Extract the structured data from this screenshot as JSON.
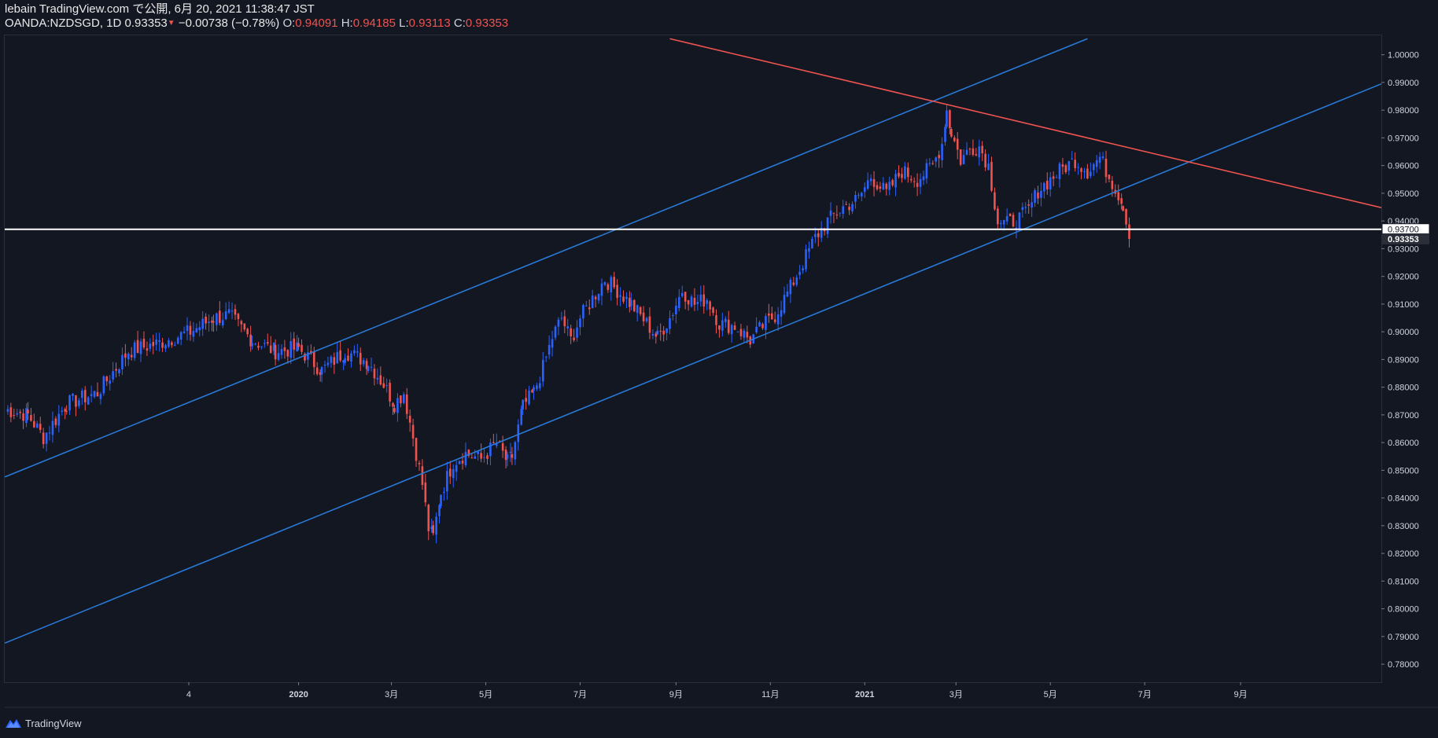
{
  "header": {
    "title": "lebain TradingView.com で公開, 6月 20, 2021 11:38:47 JST",
    "symbol": "OANDA:NZDSGD, 1D",
    "price": "0.93353",
    "change": "−0.00738 (−0.78%)",
    "o_label": "O:",
    "o_value": "0.94091",
    "h_label": "H:",
    "h_value": "0.94185",
    "l_label": "L:",
    "l_value": "0.93113",
    "c_label": "C:",
    "c_value": "0.93353"
  },
  "footer": {
    "brand": "TradingView"
  },
  "colors": {
    "background": "#131722",
    "up": "#2962ff",
    "down": "#ef5350",
    "channel": "#2979d6",
    "resistance": "#ef5350",
    "support": "#ffffff"
  },
  "chart_data": {
    "type": "candlestick",
    "symbol": "OANDA:NZDSGD",
    "interval": "1D",
    "x_range_days": [
      -190,
      700
    ],
    "ylim": [
      0.7735,
      1.007
    ],
    "y_ticks": [
      1.0,
      0.99,
      0.98,
      0.97,
      0.96,
      0.95,
      0.94,
      0.93,
      0.92,
      0.91,
      0.9,
      0.89,
      0.88,
      0.87,
      0.86,
      0.85,
      0.84,
      0.83,
      0.82,
      0.81,
      0.8,
      0.79,
      0.78
    ],
    "y_tick_labels": [
      "1.00000",
      "0.99000",
      "0.98000",
      "0.97000",
      "0.96000",
      "0.95000",
      "0.94000",
      "0.93000",
      "0.92000",
      "0.91000",
      "0.90000",
      "0.89000",
      "0.88000",
      "0.87000",
      "0.86000",
      "0.85000",
      "0.84000",
      "0.83000",
      "0.82000",
      "0.81000",
      "0.80000",
      "0.79000",
      "0.78000"
    ],
    "x_ticks": [
      {
        "day": -71,
        "label": "4"
      },
      {
        "day": 0,
        "label": "2020"
      },
      {
        "day": 60,
        "label": "3月"
      },
      {
        "day": 121,
        "label": "5月"
      },
      {
        "day": 182,
        "label": "7月"
      },
      {
        "day": 244,
        "label": "9月"
      },
      {
        "day": 305,
        "label": "11月"
      },
      {
        "day": 366,
        "label": "2021"
      },
      {
        "day": 425,
        "label": "3月"
      },
      {
        "day": 486,
        "label": "5月"
      },
      {
        "day": 547,
        "label": "7月"
      },
      {
        "day": 609,
        "label": "9月"
      }
    ],
    "series_key_points": [
      [
        -190,
        0.872
      ],
      [
        -175,
        0.87
      ],
      [
        -165,
        0.862
      ],
      [
        -150,
        0.874
      ],
      [
        -130,
        0.878
      ],
      [
        -110,
        0.893
      ],
      [
        -90,
        0.896
      ],
      [
        -70,
        0.9
      ],
      [
        -55,
        0.905
      ],
      [
        -45,
        0.906
      ],
      [
        -30,
        0.897
      ],
      [
        -15,
        0.893
      ],
      [
        0,
        0.894
      ],
      [
        15,
        0.886
      ],
      [
        30,
        0.893
      ],
      [
        45,
        0.889
      ],
      [
        55,
        0.881
      ],
      [
        62,
        0.874
      ],
      [
        68,
        0.878
      ],
      [
        74,
        0.862
      ],
      [
        80,
        0.845
      ],
      [
        84,
        0.829
      ],
      [
        87,
        0.826
      ],
      [
        92,
        0.842
      ],
      [
        100,
        0.853
      ],
      [
        108,
        0.856
      ],
      [
        118,
        0.854
      ],
      [
        128,
        0.86
      ],
      [
        135,
        0.853
      ],
      [
        138,
        0.855
      ],
      [
        145,
        0.873
      ],
      [
        152,
        0.878
      ],
      [
        158,
        0.887
      ],
      [
        164,
        0.898
      ],
      [
        170,
        0.905
      ],
      [
        176,
        0.897
      ],
      [
        182,
        0.905
      ],
      [
        190,
        0.912
      ],
      [
        198,
        0.919
      ],
      [
        206,
        0.915
      ],
      [
        215,
        0.91
      ],
      [
        225,
        0.903
      ],
      [
        232,
        0.898
      ],
      [
        240,
        0.905
      ],
      [
        248,
        0.915
      ],
      [
        256,
        0.91
      ],
      [
        264,
        0.912
      ],
      [
        272,
        0.903
      ],
      [
        282,
        0.902
      ],
      [
        292,
        0.897
      ],
      [
        300,
        0.902
      ],
      [
        308,
        0.906
      ],
      [
        318,
        0.916
      ],
      [
        326,
        0.925
      ],
      [
        334,
        0.934
      ],
      [
        342,
        0.94
      ],
      [
        352,
        0.945
      ],
      [
        362,
        0.948
      ],
      [
        370,
        0.956
      ],
      [
        380,
        0.95
      ],
      [
        390,
        0.958
      ],
      [
        400,
        0.955
      ],
      [
        410,
        0.96
      ],
      [
        416,
        0.968
      ],
      [
        419,
        0.98
      ],
      [
        422,
        0.972
      ],
      [
        428,
        0.962
      ],
      [
        434,
        0.966
      ],
      [
        440,
        0.967
      ],
      [
        446,
        0.96
      ],
      [
        452,
        0.94
      ],
      [
        458,
        0.939
      ],
      [
        466,
        0.941
      ],
      [
        472,
        0.944
      ],
      [
        478,
        0.951
      ],
      [
        486,
        0.955
      ],
      [
        494,
        0.959
      ],
      [
        502,
        0.962
      ],
      [
        510,
        0.958
      ],
      [
        518,
        0.963
      ],
      [
        524,
        0.956
      ],
      [
        528,
        0.952
      ],
      [
        533,
        0.946
      ],
      [
        537,
        0.9335
      ]
    ],
    "annotations": [
      {
        "type": "channel_upper",
        "from": {
          "day": -190,
          "price": 0.8476
        },
        "to": {
          "day": 510,
          "price": 1.0058
        }
      },
      {
        "type": "channel_lower",
        "from": {
          "day": -190,
          "price": 0.7876
        },
        "to": {
          "day": 700,
          "price": 0.9895
        }
      },
      {
        "type": "resistance",
        "from": {
          "day": 240,
          "price": 1.0058
        },
        "to": {
          "day": 700,
          "price": 0.9448
        }
      },
      {
        "type": "horizontal",
        "price": 0.937
      }
    ],
    "price_labels": [
      {
        "price": 0.937,
        "text": "0.93700",
        "style": "line"
      },
      {
        "price": 0.93353,
        "text": "0.93353",
        "style": "last"
      }
    ]
  }
}
